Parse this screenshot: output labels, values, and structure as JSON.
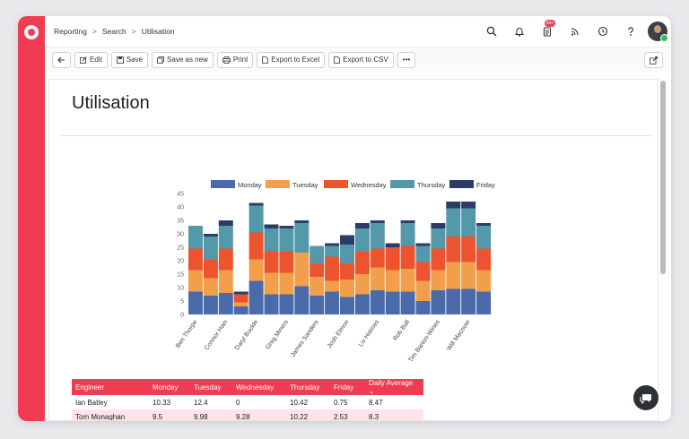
{
  "breadcrumb": [
    "Reporting",
    "Search",
    "Utilisation"
  ],
  "notifications_badge": "99+",
  "toolbar": {
    "edit_label": "Edit",
    "save_label": "Save",
    "save_as_new_label": "Save as new",
    "print_label": "Print",
    "export_excel_label": "Export to Excel",
    "export_csv_label": "Export to CSV",
    "more_label": "•••"
  },
  "page_title": "Utilisation",
  "colors": {
    "accent": "#f03c53",
    "monday": "#4a6aaa",
    "tuesday": "#f29f4c",
    "wednesday": "#ec5430",
    "thursday": "#5499a9",
    "friday": "#2b3d66"
  },
  "chart_data": {
    "type": "bar",
    "stacked": true,
    "categories": [
      "Ben Thorpe",
      "",
      "Connor Hain",
      "",
      "Daryl Buckle",
      "",
      "Greg Miners",
      "",
      "James Sanders",
      "",
      "Josh Elmon",
      "",
      "Liv Holmes",
      "",
      "Rob Ball",
      "",
      "Tim Barton-Wines",
      "",
      "Will Macover",
      ""
    ],
    "series": [
      {
        "name": "Monday",
        "values": [
          8.5,
          7,
          8,
          3,
          12.5,
          7.5,
          7.5,
          10.5,
          7,
          8.5,
          6.5,
          7.5,
          9,
          8.5,
          8.5,
          5,
          9,
          9.5,
          9.5,
          8.5
        ]
      },
      {
        "name": "Tuesday",
        "values": [
          8,
          6.5,
          8.5,
          1.5,
          8,
          8,
          8,
          12.5,
          7,
          4,
          6.5,
          7.5,
          8.5,
          8,
          8.5,
          7.5,
          7.5,
          10,
          10,
          8
        ]
      },
      {
        "name": "Wednesday",
        "values": [
          8,
          7,
          8,
          3,
          10,
          8,
          8,
          0,
          5,
          9,
          6,
          8.5,
          7,
          8.5,
          8.5,
          7,
          8,
          9.5,
          9.5,
          8
        ]
      },
      {
        "name": "Thursday",
        "values": [
          8.5,
          8.5,
          8.5,
          0,
          10,
          8.5,
          8.5,
          11,
          6.5,
          4,
          7,
          8.5,
          9.5,
          0,
          8.5,
          6,
          7.5,
          10.5,
          10.5,
          8.5
        ]
      },
      {
        "name": "Friday",
        "values": [
          0,
          1,
          2,
          1,
          1,
          1.5,
          1,
          1,
          0,
          1,
          3.5,
          2,
          1,
          1.5,
          1,
          1,
          2,
          2.5,
          2.5,
          1
        ]
      }
    ],
    "ylim": [
      0,
      45
    ],
    "yticks": [
      0,
      5,
      10,
      15,
      20,
      25,
      30,
      35,
      40,
      45
    ],
    "legend_position": "top",
    "grid": false
  },
  "table": {
    "headers": [
      "Engineer",
      "Monday",
      "Tuesday",
      "Wednesday",
      "Thursday",
      "Friday",
      "Daily Average"
    ],
    "rows": [
      [
        "Ian Batley",
        "10.33",
        "12.4",
        "0",
        "10.42",
        "0.75",
        "8.47"
      ],
      [
        "Tom Monaghan",
        "9.5",
        "9.98",
        "9.28",
        "10.22",
        "2.53",
        "8.3"
      ]
    ]
  }
}
